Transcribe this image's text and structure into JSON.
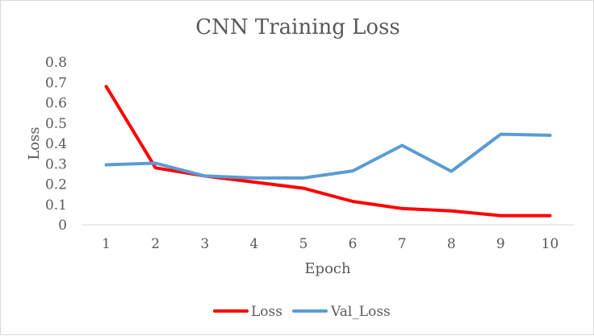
{
  "chart_data": {
    "type": "line",
    "title": "CNN Training Loss",
    "xlabel": "Epoch",
    "ylabel": "Loss",
    "categories": [
      "1",
      "2",
      "3",
      "4",
      "5",
      "6",
      "7",
      "8",
      "9",
      "10"
    ],
    "ylim": [
      0,
      0.8
    ],
    "yticks": [
      "0",
      "0.1",
      "0.2",
      "0.3",
      "0.4",
      "0.5",
      "0.6",
      "0.7",
      "0.8"
    ],
    "grid": false,
    "legend_position": "bottom",
    "series": [
      {
        "name": "Loss",
        "color": "#ff0000",
        "values": [
          0.68,
          0.28,
          0.24,
          0.21,
          0.18,
          0.115,
          0.08,
          0.068,
          0.045,
          0.045
        ]
      },
      {
        "name": "Val_Loss",
        "color": "#5b9bd5",
        "values": [
          0.295,
          0.303,
          0.24,
          0.23,
          0.23,
          0.265,
          0.39,
          0.263,
          0.445,
          0.44
        ]
      }
    ]
  }
}
